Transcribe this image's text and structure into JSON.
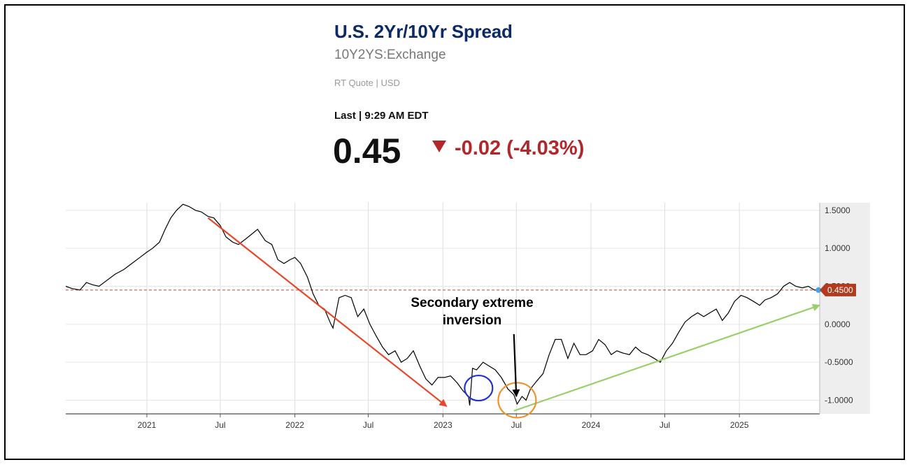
{
  "header": {
    "title": "U.S. 2Yr/10Yr Spread",
    "symbol": "10Y2YS:Exchange",
    "quote_type": "RT Quote | USD",
    "last_label": "Last | 9:29 AM EDT",
    "price": "0.45",
    "change": "-0.02 (-4.03%)",
    "change_color": "#b3262a",
    "title_color": "#0b2a66"
  },
  "chart_data": {
    "type": "line",
    "x_range": [
      "2020-06-15",
      "2025-07-18"
    ],
    "ylim": [
      -1.18,
      1.6
    ],
    "y_ticks": [
      1.5,
      1.0,
      0.5,
      0.0,
      -0.5,
      -1.0
    ],
    "y_tick_labels": [
      "1.5000",
      "1.0000",
      "0.5000",
      "0.0000",
      "-0.5000",
      "-1.0000"
    ],
    "x_ticks": [
      "2021-01-01",
      "2021-07-01",
      "2022-01-01",
      "2022-07-01",
      "2023-01-01",
      "2023-07-01",
      "2024-01-01",
      "2024-07-01",
      "2025-01-01"
    ],
    "x_tick_labels": [
      "2021",
      "Jul",
      "2022",
      "Jul",
      "2023",
      "Jul",
      "2024",
      "Jul",
      "2025"
    ],
    "grid": true,
    "series": [
      {
        "color": "#000000",
        "x": [
          "2020-06-15",
          "2020-07-01",
          "2020-07-20",
          "2020-08-05",
          "2020-08-20",
          "2020-09-05",
          "2020-09-25",
          "2020-10-15",
          "2020-11-05",
          "2020-11-25",
          "2020-12-15",
          "2021-01-01",
          "2021-01-15",
          "2021-02-01",
          "2021-02-15",
          "2021-03-01",
          "2021-03-15",
          "2021-03-31",
          "2021-04-15",
          "2021-05-01",
          "2021-05-15",
          "2021-06-01",
          "2021-06-15",
          "2021-07-01",
          "2021-07-15",
          "2021-08-01",
          "2021-08-15",
          "2021-09-01",
          "2021-09-15",
          "2021-10-01",
          "2021-10-20",
          "2021-11-05",
          "2021-11-20",
          "2021-12-05",
          "2021-12-20",
          "2022-01-01",
          "2022-01-15",
          "2022-02-01",
          "2022-02-15",
          "2022-03-01",
          "2022-03-15",
          "2022-03-31",
          "2022-04-05",
          "2022-04-20",
          "2022-05-05",
          "2022-05-20",
          "2022-06-05",
          "2022-06-20",
          "2022-07-05",
          "2022-07-20",
          "2022-08-05",
          "2022-08-20",
          "2022-09-05",
          "2022-09-20",
          "2022-10-05",
          "2022-10-20",
          "2022-11-05",
          "2022-11-20",
          "2022-12-05",
          "2022-12-20",
          "2023-01-05",
          "2023-01-20",
          "2023-02-05",
          "2023-02-20",
          "2023-03-05",
          "2023-03-08",
          "2023-03-15",
          "2023-03-25",
          "2023-04-10",
          "2023-04-25",
          "2023-05-10",
          "2023-05-25",
          "2023-06-10",
          "2023-06-25",
          "2023-07-03",
          "2023-07-15",
          "2023-07-25",
          "2023-08-05",
          "2023-08-20",
          "2023-09-05",
          "2023-09-20",
          "2023-10-05",
          "2023-10-20",
          "2023-11-05",
          "2023-11-20",
          "2023-12-05",
          "2023-12-20",
          "2024-01-05",
          "2024-01-20",
          "2024-02-05",
          "2024-02-20",
          "2024-03-05",
          "2024-03-20",
          "2024-04-05",
          "2024-04-20",
          "2024-05-05",
          "2024-05-20",
          "2024-06-05",
          "2024-06-20",
          "2024-07-05",
          "2024-07-20",
          "2024-08-05",
          "2024-08-20",
          "2024-09-05",
          "2024-09-20",
          "2024-10-05",
          "2024-10-20",
          "2024-11-05",
          "2024-11-20",
          "2024-12-05",
          "2024-12-20",
          "2025-01-05",
          "2025-01-20",
          "2025-02-05",
          "2025-02-20",
          "2025-03-05",
          "2025-03-20",
          "2025-04-05",
          "2025-04-20",
          "2025-05-05",
          "2025-05-20",
          "2025-06-05",
          "2025-06-20",
          "2025-07-05",
          "2025-07-15"
        ],
        "y": [
          0.5,
          0.47,
          0.45,
          0.55,
          0.52,
          0.5,
          0.58,
          0.66,
          0.72,
          0.8,
          0.88,
          0.95,
          1.0,
          1.08,
          1.25,
          1.4,
          1.5,
          1.58,
          1.55,
          1.5,
          1.48,
          1.42,
          1.4,
          1.3,
          1.15,
          1.08,
          1.05,
          1.12,
          1.18,
          1.25,
          1.1,
          1.05,
          0.85,
          0.8,
          0.85,
          0.88,
          0.8,
          0.62,
          0.4,
          0.25,
          0.2,
          0.0,
          -0.05,
          0.35,
          0.38,
          0.35,
          0.1,
          0.2,
          0.0,
          -0.15,
          -0.3,
          -0.4,
          -0.35,
          -0.5,
          -0.45,
          -0.35,
          -0.55,
          -0.72,
          -0.8,
          -0.7,
          -0.7,
          -0.68,
          -0.77,
          -0.88,
          -0.95,
          -1.07,
          -0.58,
          -0.6,
          -0.5,
          -0.55,
          -0.6,
          -0.7,
          -0.85,
          -0.93,
          -1.05,
          -0.95,
          -1.0,
          -0.85,
          -0.75,
          -0.65,
          -0.4,
          -0.2,
          -0.2,
          -0.45,
          -0.25,
          -0.4,
          -0.4,
          -0.35,
          -0.2,
          -0.27,
          -0.4,
          -0.35,
          -0.38,
          -0.4,
          -0.3,
          -0.37,
          -0.4,
          -0.45,
          -0.5,
          -0.35,
          -0.25,
          -0.1,
          0.03,
          0.1,
          0.15,
          0.1,
          0.15,
          0.2,
          0.05,
          0.15,
          0.3,
          0.38,
          0.35,
          0.3,
          0.25,
          0.32,
          0.35,
          0.4,
          0.5,
          0.55,
          0.5,
          0.48,
          0.5,
          0.45,
          0.45
        ]
      }
    ],
    "reference_line": {
      "value": 0.45,
      "label": "0.4500",
      "color": "#c8442f"
    },
    "annotations": {
      "text_line1": "Secondary extreme",
      "text_line2": "inversion",
      "red_arrow": {
        "color": "#e8472a",
        "from": [
          "2021-06-01",
          1.4
        ],
        "to": [
          "2023-01-10",
          -1.08
        ]
      },
      "green_arrow": {
        "color": "#9ccf6b",
        "from": [
          "2023-06-25",
          -1.14
        ],
        "to": [
          "2025-07-18",
          0.25
        ]
      },
      "black_arrow": {
        "color": "#000000",
        "from": [
          "2023-06-25",
          -0.13
        ],
        "to": [
          "2023-07-01",
          -0.95
        ]
      },
      "blue_circle": {
        "color": "#2233cc",
        "center": [
          "2023-03-30",
          -0.84
        ]
      },
      "orange_circle": {
        "color": "#f0922b",
        "center": [
          "2023-07-03",
          -1.0
        ]
      }
    }
  }
}
